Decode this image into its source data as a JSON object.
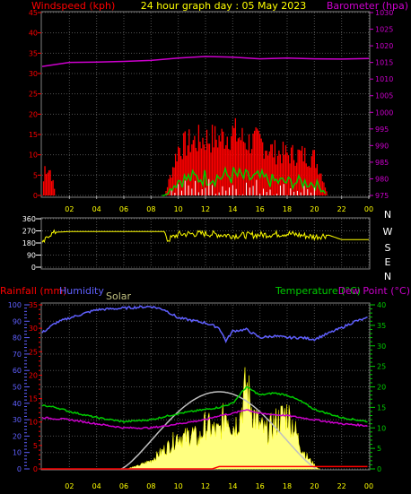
{
  "header": {
    "title": "24 hour graph day : 05 May 2023",
    "left_label": "Windspeed (kph)",
    "right_label": "Barometer (hpa)"
  },
  "bottom_labels": {
    "rainfall": "Rainfall (mm)",
    "humidity": "Humidity",
    "solar": "Solar",
    "temperature": "Temperature (°C)",
    "dewpoint": "Dew Point (°C)"
  },
  "colors": {
    "wind": "#ff0000",
    "gust": "#00cc00",
    "wind_avg": "#ffffff",
    "barometer": "#cc00cc",
    "direction": "#ffff00",
    "humidity": "#6060ff",
    "temperature": "#00cc00",
    "dewpoint": "#cc00cc",
    "solar_fill": "#ffff80",
    "solar_max": "#c0c0c0",
    "rainfall": "#ff0000"
  },
  "chart_data": [
    {
      "type": "line",
      "name": "wind-barometer",
      "x_ticks": [
        "02",
        "04",
        "06",
        "08",
        "10",
        "12",
        "14",
        "16",
        "18",
        "20",
        "22",
        "00"
      ],
      "left_axis": {
        "label": "Windspeed (kph)",
        "range": [
          0,
          45
        ],
        "ticks": [
          "0",
          "5",
          "10",
          "15",
          "20",
          "25",
          "30",
          "35",
          "40",
          "45"
        ]
      },
      "right_axis": {
        "label": "Barometer (hpa)",
        "range": [
          975,
          1030
        ],
        "ticks": [
          "975",
          "980",
          "985",
          "990",
          "995",
          "1000",
          "1005",
          "1010",
          "1015",
          "1020",
          "1025",
          "1030"
        ]
      },
      "barometer": {
        "x": [
          0,
          2,
          4,
          6,
          8,
          10,
          12,
          14,
          16,
          18,
          20,
          22,
          24
        ],
        "y": [
          1013.8,
          1015.0,
          1015.1,
          1015.3,
          1015.6,
          1016.3,
          1016.8,
          1016.6,
          1016.1,
          1016.3,
          1016.1,
          1016.0,
          1016.2
        ]
      },
      "wind_profile": {
        "x": [
          0,
          0.2,
          0.6,
          1,
          9,
          10,
          11,
          12,
          13,
          14,
          15,
          16,
          17,
          18,
          19,
          20,
          20.6,
          21,
          24
        ],
        "peak": [
          0,
          9,
          8,
          0,
          0,
          15,
          17,
          18,
          18,
          20,
          17,
          17,
          14,
          13,
          13,
          12,
          6,
          0,
          0
        ]
      },
      "grid": true
    },
    {
      "type": "line",
      "name": "wind-direction",
      "right_letters": [
        "N",
        "W",
        "S",
        "E",
        "N"
      ],
      "left_axis": {
        "range": [
          0,
          360
        ],
        "ticks": [
          "0",
          "90",
          "180",
          "270",
          "360"
        ]
      },
      "direction": {
        "x": [
          0,
          0.5,
          1,
          2,
          4,
          6,
          8,
          9,
          9.2,
          10,
          12,
          14,
          16,
          18,
          20,
          21,
          22,
          24
        ],
        "y": [
          170,
          240,
          260,
          265,
          265,
          265,
          265,
          265,
          200,
          245,
          250,
          235,
          240,
          250,
          225,
          240,
          205,
          205
        ]
      }
    },
    {
      "type": "line",
      "name": "rain-humidity-solar-temperature",
      "x_ticks": [
        "02",
        "04",
        "06",
        "08",
        "10",
        "12",
        "14",
        "16",
        "18",
        "20",
        "22",
        "00"
      ],
      "left_axis_humidity": {
        "label": "Humidity",
        "range": [
          0,
          100
        ],
        "ticks": [
          "0",
          "10",
          "20",
          "30",
          "40",
          "50",
          "60",
          "70",
          "80",
          "90",
          "100"
        ]
      },
      "left_axis_rain": {
        "label": "Rainfall (mm)",
        "range": [
          0,
          35
        ],
        "ticks": [
          "0",
          "5",
          "10",
          "15",
          "20",
          "25",
          "30",
          "35"
        ]
      },
      "right_axis_temp": {
        "label": "Temperature (°C)",
        "range": [
          0,
          40
        ],
        "ticks": [
          "0",
          "5",
          "10",
          "15",
          "20",
          "25",
          "30",
          "35",
          "40"
        ]
      },
      "humidity": {
        "x": [
          0,
          0.5,
          1,
          2,
          4,
          6,
          8,
          9,
          10,
          12,
          13,
          13.5,
          14,
          15,
          16,
          17,
          18,
          19,
          20,
          22,
          23,
          24
        ],
        "y": [
          83,
          86,
          89,
          92,
          97,
          98,
          99,
          97,
          92,
          89,
          86,
          78,
          84,
          85,
          80,
          81,
          80,
          80,
          79,
          86,
          90,
          92
        ]
      },
      "temperature": {
        "x": [
          0,
          1,
          2,
          4,
          6,
          8,
          10,
          12,
          13,
          14,
          15,
          16,
          17,
          18,
          19,
          20,
          22,
          24
        ],
        "y": [
          15.5,
          15.0,
          14.0,
          12.5,
          11.5,
          12.0,
          13.5,
          14.5,
          15.0,
          16.0,
          20.0,
          18.0,
          18.5,
          18.0,
          16.5,
          14.5,
          12.5,
          11.5
        ]
      },
      "dewpoint": {
        "x": [
          0,
          2,
          4,
          6,
          8,
          10,
          12,
          13,
          14,
          15,
          16,
          18,
          20,
          22,
          24
        ],
        "y": [
          12.5,
          12.0,
          11.0,
          10.0,
          10.0,
          11.0,
          12.0,
          13.0,
          13.5,
          14.5,
          13.5,
          13.0,
          12.0,
          11.0,
          10.5
        ]
      },
      "solar_max": {
        "sunrise": 5.8,
        "sunset": 20.2,
        "peak_time": 13.2,
        "peak_pct": 47
      },
      "solar": {
        "x": [
          6.5,
          7,
          7.5,
          8,
          8.5,
          9,
          9.5,
          10,
          10.5,
          11,
          11.5,
          12,
          12.5,
          13,
          13.5,
          14,
          14.5,
          15,
          15.5,
          16,
          16.5,
          17,
          17.5,
          18,
          18.5,
          19,
          19.5,
          20,
          20.3
        ],
        "y": [
          1,
          2,
          4,
          6,
          10,
          14,
          18,
          24,
          22,
          26,
          20,
          32,
          28,
          26,
          42,
          30,
          36,
          60,
          40,
          30,
          26,
          32,
          36,
          40,
          30,
          16,
          8,
          3,
          0
        ]
      },
      "rainfall": {
        "x": [
          0,
          12.5,
          13,
          24
        ],
        "y": [
          0,
          0,
          0.5,
          0.5
        ]
      },
      "grid": true
    }
  ]
}
